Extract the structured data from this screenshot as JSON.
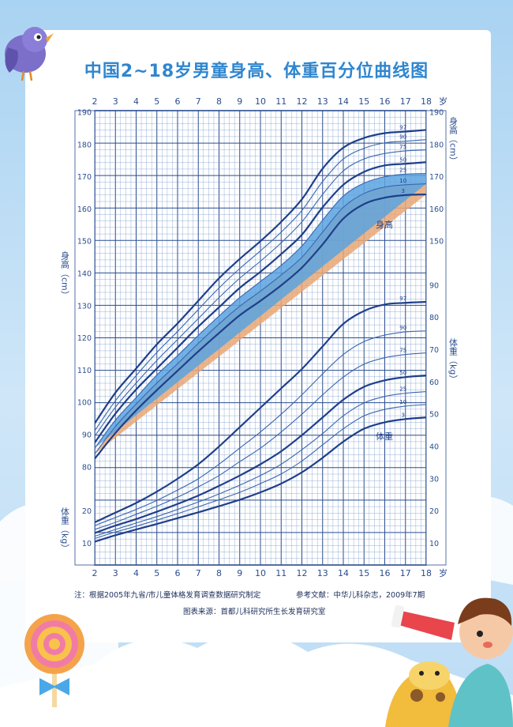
{
  "colors": {
    "grid_major": "#2a4d8f",
    "grid_minor": "#6d8fc4",
    "curve_main": "#1f3f8a",
    "curve_thin": "#3a66b0",
    "band_blue": "#5aa3e0",
    "band_orange": "#e9a774",
    "text": "#2a4d8f"
  },
  "notes": {
    "left": "注：根据2005年九省/市儿童体格发育调查数据研究制定",
    "right": "参考文献：中华儿科杂志，2009年7期",
    "source": "图表来源：首都儿科研究所生长发育研究室"
  },
  "chart_data": {
    "type": "line",
    "title": "中国2~18岁男童身高、体重百分位曲线图",
    "x_ticks": [
      2,
      3,
      4,
      5,
      6,
      7,
      8,
      9,
      10,
      11,
      12,
      13,
      14,
      15,
      16,
      17,
      18
    ],
    "x_unit": "岁",
    "height_axis": {
      "label": "身高（cm）",
      "ticks": [
        80,
        90,
        100,
        110,
        120,
        130,
        140,
        150,
        160,
        170,
        180,
        190
      ],
      "range": [
        80,
        190
      ]
    },
    "weight_axis": {
      "label": "体重（kg）",
      "ticks": [
        10,
        20,
        30,
        40,
        50,
        60,
        70,
        80,
        90
      ],
      "range": [
        5,
        95
      ]
    },
    "height_label": "身高",
    "weight_label": "体重",
    "height_series": [
      {
        "name": "97",
        "values": [
          93.5,
          103,
          110.5,
          118,
          124.5,
          131.5,
          138.5,
          144.5,
          150,
          156,
          163,
          172.5,
          179,
          182,
          183.5,
          184,
          184.5
        ]
      },
      {
        "name": "90",
        "values": [
          91.2,
          100.5,
          108.3,
          115.5,
          122,
          128.8,
          135.5,
          141.5,
          147,
          152.8,
          159.5,
          168.5,
          175.5,
          178.8,
          180.5,
          181,
          181.5
        ]
      },
      {
        "name": "75",
        "values": [
          89.5,
          98.5,
          106,
          113,
          119.5,
          126,
          132.5,
          138.5,
          143.8,
          149.5,
          156,
          164.5,
          171.8,
          175.5,
          177.2,
          178,
          178.3
        ]
      },
      {
        "name": "50",
        "values": [
          87.5,
          96.5,
          104,
          110.5,
          117,
          123.5,
          129.5,
          135.5,
          140.5,
          146,
          152,
          160.5,
          167.5,
          171.5,
          173.5,
          174,
          174.5
        ]
      },
      {
        "name": "25",
        "values": [
          85.8,
          94.5,
          101.5,
          108.5,
          114.5,
          120.8,
          126.8,
          132.5,
          137.5,
          142.5,
          148.5,
          156.5,
          164,
          168,
          170,
          170.8,
          171
        ]
      },
      {
        "name": "10",
        "values": [
          84,
          92.5,
          99.5,
          106,
          112,
          118.3,
          124.3,
          129.8,
          134.5,
          139.5,
          145,
          152.8,
          160.5,
          164.8,
          166.8,
          167.5,
          167.8
        ]
      },
      {
        "name": "3",
        "values": [
          82.5,
          90.5,
          97.5,
          103.8,
          109.8,
          115.8,
          121.5,
          127,
          131.5,
          136.3,
          141.8,
          149,
          157,
          161.5,
          163.5,
          164.3,
          164.5
        ]
      }
    ],
    "weight_series": [
      {
        "name": "97",
        "values": [
          16.5,
          19.5,
          22.5,
          26,
          30,
          34.5,
          40,
          46,
          52,
          58,
          64,
          71,
          78,
          82,
          84,
          84.5,
          84.8
        ]
      },
      {
        "name": "90",
        "values": [
          15.5,
          18,
          20.5,
          23.3,
          26.5,
          30,
          34.5,
          39.5,
          44.5,
          50,
          56,
          62.5,
          68.5,
          72.5,
          74.5,
          75.5,
          75.8
        ]
      },
      {
        "name": "75",
        "values": [
          14.3,
          16.5,
          19,
          21.5,
          24.3,
          27.5,
          31,
          35.3,
          39.5,
          44.5,
          50,
          56,
          61.5,
          65.5,
          67.5,
          68.5,
          69
        ]
      },
      {
        "name": "50",
        "values": [
          13.2,
          15.5,
          17.5,
          19.8,
          22.2,
          24.8,
          27.8,
          31,
          34.5,
          38.5,
          43.5,
          49,
          54.5,
          58.5,
          60.5,
          61.5,
          62
        ]
      },
      {
        "name": "25",
        "values": [
          12.2,
          14.3,
          16.3,
          18.3,
          20.5,
          22.8,
          25.3,
          28,
          31,
          34.5,
          39,
          44,
          49.5,
          53.5,
          55.5,
          56.5,
          57
        ]
      },
      {
        "name": "10",
        "values": [
          11.5,
          13.5,
          15.3,
          17.2,
          19.2,
          21.3,
          23.5,
          25.8,
          28.5,
          31.5,
          35.5,
          40.5,
          45.5,
          49.5,
          51.5,
          52.5,
          53
        ]
      },
      {
        "name": "3",
        "values": [
          10.5,
          12.5,
          14.3,
          16,
          17.8,
          19.6,
          21.5,
          23.5,
          25.8,
          28.5,
          32,
          36.5,
          41.5,
          45.5,
          47.5,
          48.5,
          49
        ]
      }
    ],
    "grid": true
  }
}
